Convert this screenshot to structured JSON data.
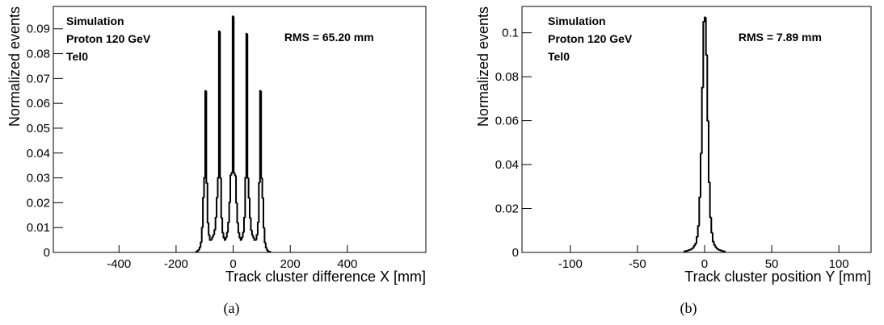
{
  "chart_data": [
    {
      "type": "histogram",
      "caption": "(a)",
      "x_label": "Track cluster difference X [mm]",
      "y_label": "Normalized events",
      "annotations": [
        "Simulation",
        "Proton 120 GeV",
        "Tel0"
      ],
      "rms_label": "RMS = 65.20 mm",
      "color": "#000000",
      "xlim": [
        -630,
        675
      ],
      "ylim": [
        0,
        0.099
      ],
      "xticks": [
        -400,
        -200,
        0,
        200,
        400
      ],
      "yticks": [
        0,
        0.01,
        0.02,
        0.03,
        0.04,
        0.05,
        0.06,
        0.07,
        0.08,
        0.09
      ],
      "bins": [
        -130,
        -126,
        -122,
        -118,
        -114,
        -110,
        -106,
        -102,
        -98,
        -94,
        -90,
        -86,
        -82,
        -78,
        -74,
        -70,
        -66,
        -62,
        -58,
        -54,
        -50,
        -46,
        -42,
        -38,
        -34,
        -30,
        -26,
        -22,
        -18,
        -14,
        -10,
        -6,
        -2,
        2,
        6,
        10,
        14,
        18,
        22,
        26,
        30,
        34,
        38,
        42,
        46,
        50,
        54,
        58,
        62,
        66,
        70,
        74,
        78,
        82,
        86,
        90,
        94,
        98,
        102,
        106,
        110,
        114,
        118,
        122,
        126,
        130
      ],
      "values": [
        0.0003,
        0.0005,
        0.001,
        0.002,
        0.004,
        0.01,
        0.022,
        0.03,
        0.065,
        0.028,
        0.012,
        0.007,
        0.005,
        0.005,
        0.006,
        0.007,
        0.009,
        0.014,
        0.022,
        0.03,
        0.089,
        0.03,
        0.014,
        0.008,
        0.006,
        0.005,
        0.006,
        0.008,
        0.012,
        0.02,
        0.031,
        0.032,
        0.095,
        0.032,
        0.031,
        0.02,
        0.012,
        0.008,
        0.006,
        0.005,
        0.006,
        0.008,
        0.014,
        0.03,
        0.088,
        0.03,
        0.022,
        0.014,
        0.009,
        0.007,
        0.006,
        0.005,
        0.005,
        0.007,
        0.012,
        0.028,
        0.065,
        0.03,
        0.022,
        0.01,
        0.004,
        0.002,
        0.001,
        0.0005,
        0.0003
      ]
    },
    {
      "type": "histogram",
      "caption": "(b)",
      "x_label": "Track cluster position Y [mm]",
      "y_label": "Normalized events",
      "annotations": [
        "Simulation",
        "Proton 120 GeV",
        "Tel0"
      ],
      "rms_label": "RMS = 7.89 mm",
      "color": "#000000",
      "xlim": [
        -136,
        124
      ],
      "ylim": [
        0,
        0.112
      ],
      "xticks": [
        -100,
        -50,
        0,
        50,
        100
      ],
      "yticks": [
        0,
        0.02,
        0.04,
        0.06,
        0.08,
        0.1
      ],
      "bins": [
        -15,
        -14,
        -13,
        -12,
        -11,
        -10,
        -9,
        -8,
        -7,
        -6,
        -5,
        -4,
        -3,
        -2,
        -1,
        0,
        1,
        2,
        3,
        4,
        5,
        6,
        7,
        8,
        9,
        10,
        11,
        12,
        13,
        14,
        15
      ],
      "values": [
        0.0005,
        0.0006,
        0.0008,
        0.001,
        0.0012,
        0.0015,
        0.002,
        0.003,
        0.004,
        0.007,
        0.012,
        0.025,
        0.045,
        0.075,
        0.105,
        0.107,
        0.09,
        0.06,
        0.032,
        0.016,
        0.009,
        0.005,
        0.0035,
        0.0025,
        0.0018,
        0.0014,
        0.0011,
        0.0009,
        0.0007,
        0.0005
      ]
    }
  ]
}
